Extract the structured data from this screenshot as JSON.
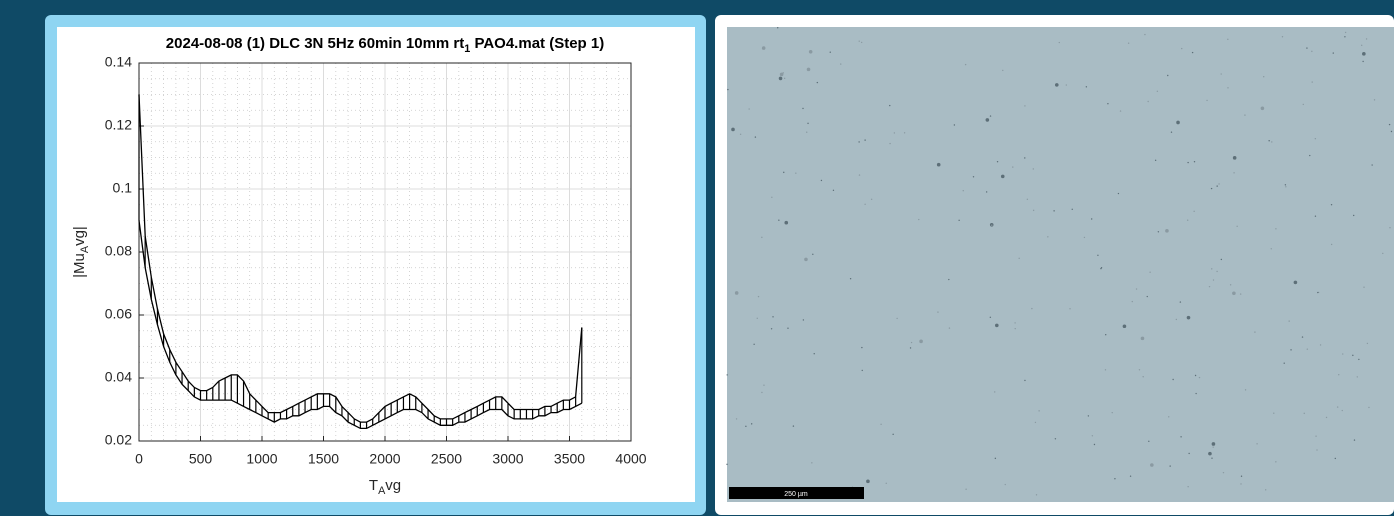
{
  "chart_data": {
    "type": "line",
    "title": [
      "2024-08-08 (1) DLC 3N 5Hz 60min 10mm rt",
      "1",
      " PAO4.mat (Step 1)"
    ],
    "x_label": [
      "T",
      "A",
      "vg"
    ],
    "y_label": [
      "|Mu",
      "A",
      "vg|"
    ],
    "x": [
      0,
      50,
      100,
      150,
      200,
      250,
      300,
      350,
      400,
      450,
      500,
      550,
      600,
      650,
      700,
      750,
      800,
      850,
      900,
      950,
      1000,
      1050,
      1100,
      1150,
      1200,
      1250,
      1300,
      1350,
      1400,
      1450,
      1500,
      1550,
      1600,
      1650,
      1700,
      1750,
      1800,
      1850,
      1900,
      1950,
      2000,
      2050,
      2100,
      2150,
      2200,
      2250,
      2300,
      2350,
      2400,
      2450,
      2500,
      2550,
      2600,
      2650,
      2700,
      2750,
      2800,
      2850,
      2900,
      2950,
      3000,
      3050,
      3100,
      3150,
      3200,
      3250,
      3300,
      3350,
      3400,
      3450,
      3500,
      3550,
      3600
    ],
    "series": [
      {
        "color": "#000000",
        "values": [
          0.09,
          0.075,
          0.065,
          0.057,
          0.05,
          0.045,
          0.041,
          0.038,
          0.036,
          0.034,
          0.033,
          0.033,
          0.033,
          0.033,
          0.033,
          0.033,
          0.032,
          0.031,
          0.03,
          0.029,
          0.028,
          0.027,
          0.026,
          0.027,
          0.027,
          0.028,
          0.028,
          0.029,
          0.03,
          0.03,
          0.031,
          0.031,
          0.029,
          0.028,
          0.026,
          0.025,
          0.024,
          0.024,
          0.025,
          0.026,
          0.027,
          0.028,
          0.029,
          0.03,
          0.03,
          0.03,
          0.029,
          0.027,
          0.026,
          0.025,
          0.025,
          0.025,
          0.026,
          0.026,
          0.027,
          0.028,
          0.029,
          0.03,
          0.03,
          0.03,
          0.028,
          0.027,
          0.027,
          0.027,
          0.027,
          0.028,
          0.028,
          0.029,
          0.029,
          0.03,
          0.03,
          0.031,
          0.032
        ]
      },
      {
        "color": "#000000",
        "values": [
          0.13,
          0.085,
          0.072,
          0.062,
          0.054,
          0.049,
          0.045,
          0.042,
          0.039,
          0.037,
          0.036,
          0.036,
          0.037,
          0.039,
          0.04,
          0.041,
          0.041,
          0.039,
          0.035,
          0.033,
          0.031,
          0.029,
          0.029,
          0.029,
          0.03,
          0.031,
          0.032,
          0.033,
          0.034,
          0.035,
          0.035,
          0.035,
          0.034,
          0.031,
          0.029,
          0.027,
          0.026,
          0.026,
          0.027,
          0.029,
          0.031,
          0.032,
          0.033,
          0.034,
          0.035,
          0.034,
          0.032,
          0.03,
          0.028,
          0.027,
          0.027,
          0.027,
          0.028,
          0.029,
          0.03,
          0.031,
          0.032,
          0.033,
          0.034,
          0.034,
          0.032,
          0.03,
          0.03,
          0.03,
          0.03,
          0.03,
          0.031,
          0.031,
          0.032,
          0.033,
          0.033,
          0.034,
          0.056
        ]
      }
    ],
    "xlim": [
      0,
      4000
    ],
    "xticks": [
      0,
      500,
      1000,
      1500,
      2000,
      2500,
      3000,
      3500,
      4000
    ],
    "ylim": [
      0.02,
      0.14
    ],
    "yticks": [
      0.02,
      0.04,
      0.06,
      0.08,
      0.1,
      0.12,
      0.14
    ],
    "grid": true,
    "minor_grid": true
  },
  "image": {
    "scale_bar": "250 µm"
  }
}
